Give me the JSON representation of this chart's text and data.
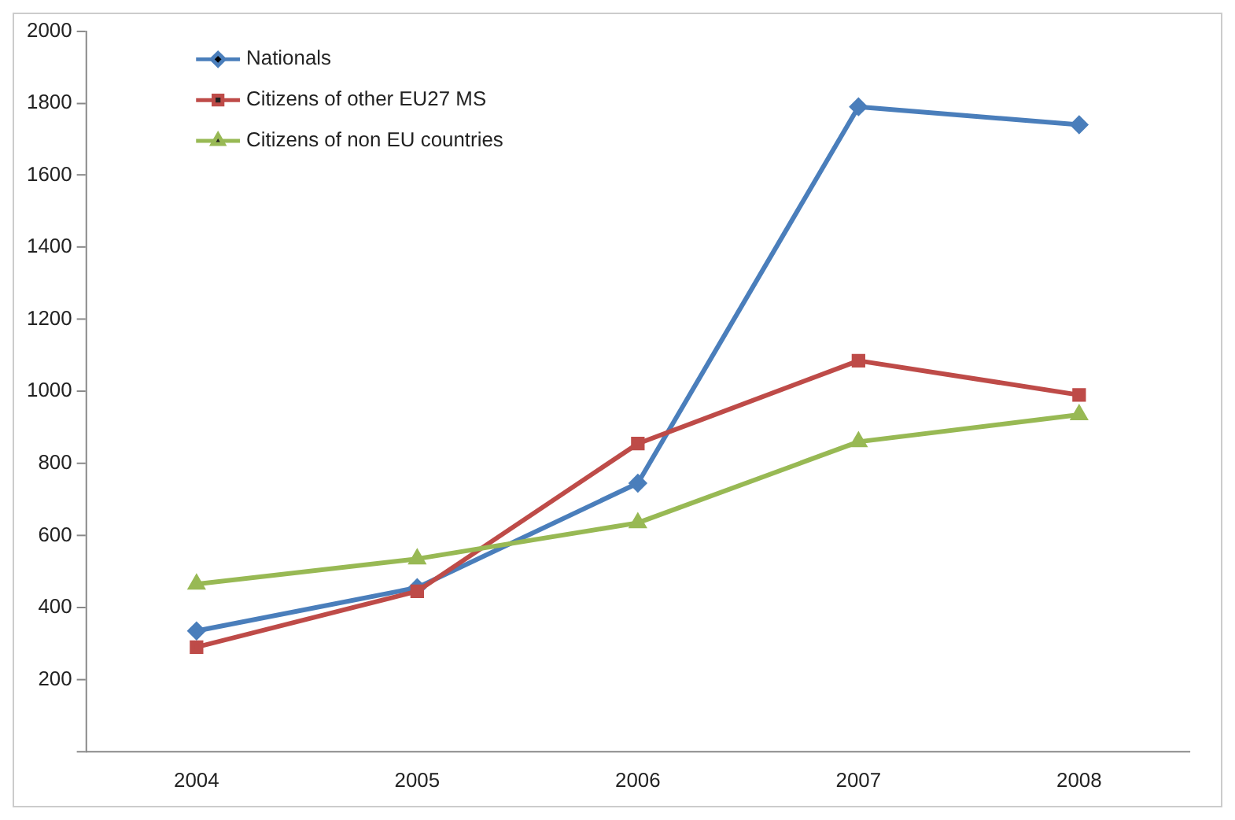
{
  "chart_data": {
    "type": "line",
    "categories": [
      "2004",
      "2005",
      "2006",
      "2007",
      "2008"
    ],
    "series": [
      {
        "name": "Nationals",
        "color": "#4a7ebb",
        "marker": "diamond",
        "values": [
          335,
          455,
          745,
          1790,
          1740
        ]
      },
      {
        "name": "Citizens of other EU27 MS",
        "color": "#be4b48",
        "marker": "square",
        "values": [
          290,
          445,
          855,
          1085,
          990
        ]
      },
      {
        "name": "Citizens of non EU countries",
        "color": "#98b954",
        "marker": "triangle",
        "values": [
          465,
          535,
          635,
          860,
          935
        ]
      }
    ],
    "ylim": [
      0,
      2000
    ],
    "yticks": [
      {
        "value": 0,
        "label": null
      },
      200,
      400,
      600,
      800,
      1000,
      1200,
      1400,
      1600,
      1800,
      2000
    ],
    "grid": false,
    "legend": "top left"
  }
}
